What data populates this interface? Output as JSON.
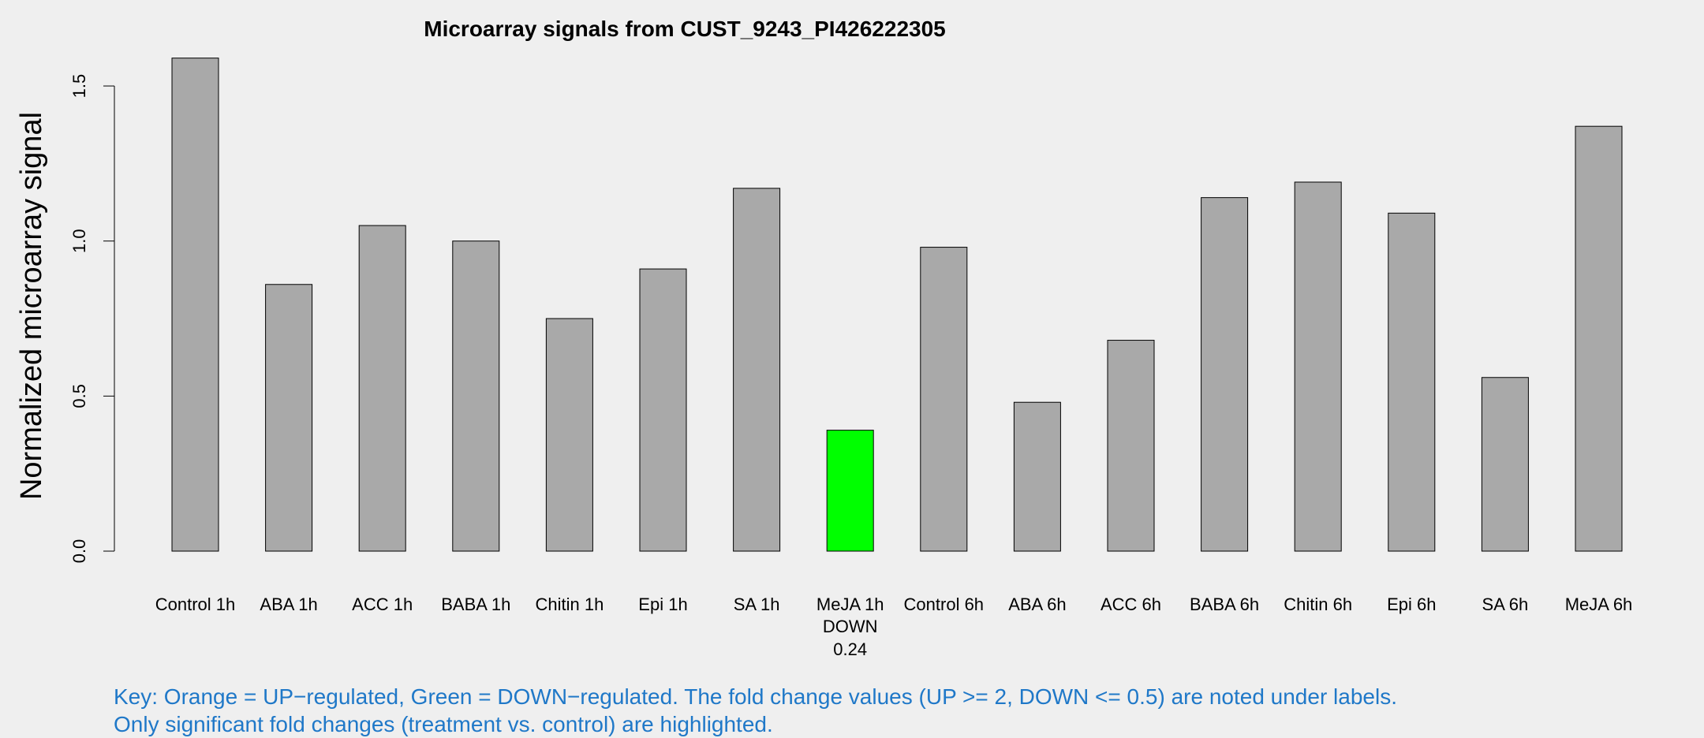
{
  "chart_data": {
    "type": "bar",
    "title": "Microarray signals from CUST_9243_PI426222305",
    "ylabel": "Normalized microarray signal",
    "xlabel": "",
    "ylim": [
      0,
      1.5
    ],
    "yticks": [
      "0.0",
      "0.5",
      "1.0",
      "1.5"
    ],
    "grid": false,
    "categories": [
      "Control 1h",
      "ABA 1h",
      "ACC 1h",
      "BABA 1h",
      "Chitin 1h",
      "Epi 1h",
      "SA 1h",
      "MeJA 1h",
      "Control 6h",
      "ABA 6h",
      "ACC 6h",
      "BABA 6h",
      "Chitin 6h",
      "Epi 6h",
      "SA 6h",
      "MeJA 6h"
    ],
    "values": [
      1.59,
      0.86,
      1.05,
      1.0,
      0.75,
      0.91,
      1.17,
      0.39,
      0.98,
      0.48,
      0.68,
      1.14,
      1.19,
      1.09,
      0.56,
      1.37
    ],
    "annotations": [
      {
        "category": "MeJA 1h",
        "regulation": "DOWN",
        "fold_change": "0.24"
      }
    ],
    "colors": {
      "default_bar": "#a9a9a9",
      "down_regulated": "#00ff00",
      "up_regulated": "#ffa500"
    }
  },
  "key": {
    "line1": "Key: Orange = UP−regulated, Green = DOWN−regulated. The fold change values (UP >= 2, DOWN <= 0.5) are noted under labels.",
    "line2": "Only significant fold changes (treatment vs. control) are highlighted."
  }
}
